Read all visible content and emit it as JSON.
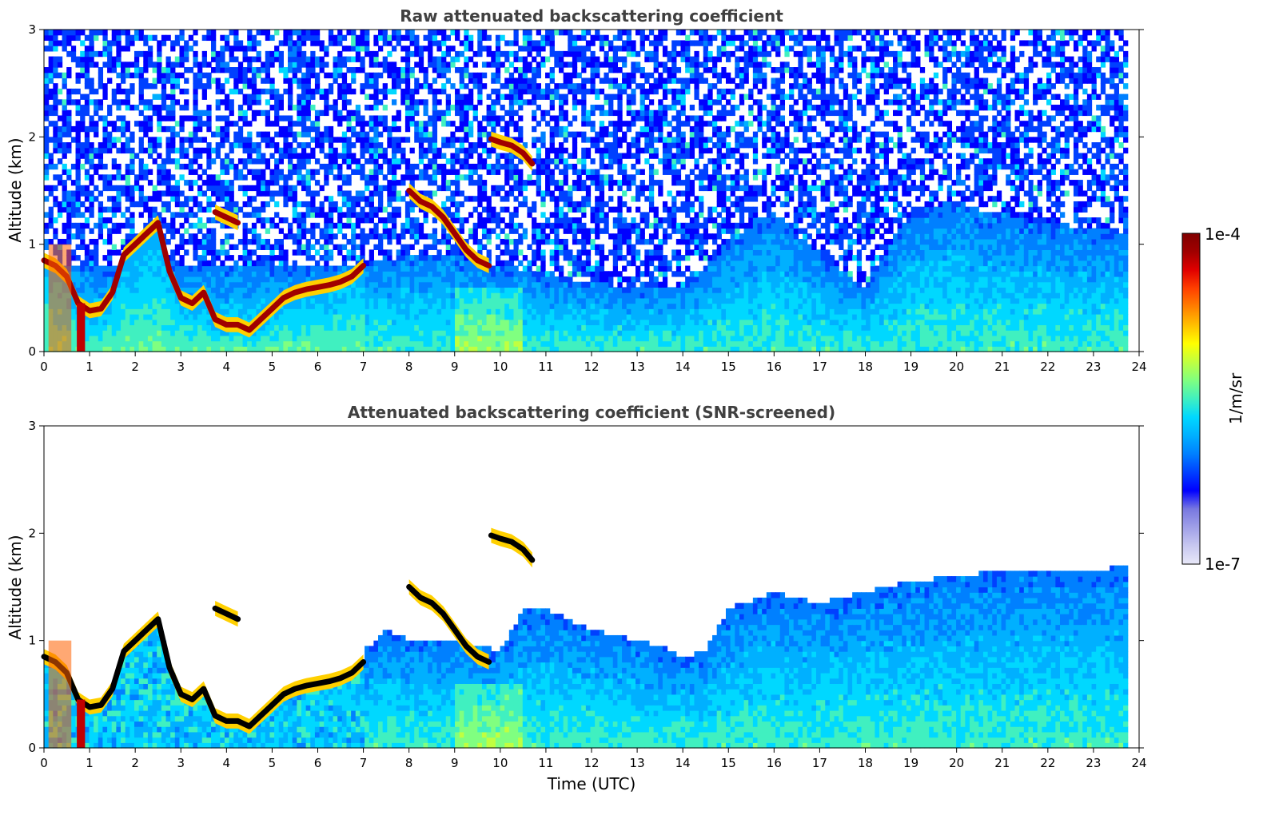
{
  "chart_data": [
    {
      "type": "heatmap",
      "title": "Raw attenuated backscattering coefficient",
      "xlabel": "",
      "ylabel": "Altitude (km)",
      "xlim": [
        0,
        24
      ],
      "ylim": [
        0,
        3
      ],
      "xticks": [
        "0",
        "1",
        "2",
        "3",
        "4",
        "5",
        "6",
        "7",
        "8",
        "9",
        "10",
        "11",
        "12",
        "13",
        "14",
        "15",
        "16",
        "17",
        "18",
        "19",
        "20",
        "21",
        "22",
        "23",
        "24"
      ],
      "yticks": [
        "0",
        "1",
        "2",
        "3"
      ],
      "data_end_time": 23.75,
      "cloud_layers": [
        {
          "t": [
            0.0,
            0.25,
            0.5,
            0.75,
            1.0,
            1.25,
            1.5,
            1.75,
            2.0,
            2.25,
            2.5,
            2.75,
            3.0,
            3.25,
            3.5,
            3.75,
            4.0,
            4.25,
            4.5,
            4.75,
            5.0,
            5.25,
            5.5,
            5.75,
            6.0,
            6.25,
            6.5,
            6.75,
            7.0
          ],
          "alt": [
            0.85,
            0.8,
            0.7,
            0.45,
            0.38,
            0.4,
            0.55,
            0.9,
            1.0,
            1.1,
            1.2,
            0.75,
            0.5,
            0.45,
            0.55,
            0.3,
            0.25,
            0.25,
            0.2,
            0.3,
            0.4,
            0.5,
            0.55,
            0.58,
            0.6,
            0.62,
            0.65,
            0.7,
            0.8
          ]
        },
        {
          "t": [
            3.75,
            4.0,
            4.25
          ],
          "alt": [
            1.3,
            1.25,
            1.2
          ]
        },
        {
          "t": [
            8.0,
            8.25,
            8.5,
            8.75,
            9.0,
            9.25,
            9.5,
            9.75
          ],
          "alt": [
            1.5,
            1.4,
            1.35,
            1.25,
            1.1,
            0.95,
            0.85,
            0.8
          ]
        },
        {
          "t": [
            9.8,
            10.0,
            10.25,
            10.5,
            10.7
          ],
          "alt": [
            1.98,
            1.95,
            1.92,
            1.85,
            1.75
          ]
        }
      ],
      "aerosol_top": {
        "t": [
          7,
          8,
          9,
          10,
          11,
          12,
          13,
          14,
          15,
          16,
          17,
          18,
          19,
          20,
          21,
          22,
          23,
          23.75
        ],
        "alt": [
          0.8,
          0.9,
          0.9,
          0.8,
          0.7,
          0.65,
          0.6,
          0.6,
          1.0,
          1.3,
          0.9,
          0.6,
          1.3,
          1.4,
          1.25,
          1.2,
          1.15,
          1.1
        ]
      }
    },
    {
      "type": "heatmap",
      "title": "Attenuated backscattering coefficient (SNR-screened)",
      "xlabel": "Time (UTC)",
      "ylabel": "Altitude (km)",
      "xlim": [
        0,
        24
      ],
      "ylim": [
        0,
        3
      ],
      "xticks": [
        "0",
        "1",
        "2",
        "3",
        "4",
        "5",
        "6",
        "7",
        "8",
        "9",
        "10",
        "11",
        "12",
        "13",
        "14",
        "15",
        "16",
        "17",
        "18",
        "19",
        "20",
        "21",
        "22",
        "23",
        "24"
      ],
      "yticks": [
        "0",
        "1",
        "2",
        "3"
      ],
      "data_end_time": 23.75,
      "cloud_layers": [
        {
          "t": [
            0.0,
            0.25,
            0.5,
            0.75,
            1.0,
            1.25,
            1.5,
            1.75,
            2.0,
            2.25,
            2.5,
            2.75,
            3.0,
            3.25,
            3.5,
            3.75,
            4.0,
            4.25,
            4.5,
            4.75,
            5.0,
            5.25,
            5.5,
            5.75,
            6.0,
            6.25,
            6.5,
            6.75,
            7.0
          ],
          "alt": [
            0.85,
            0.8,
            0.7,
            0.45,
            0.38,
            0.4,
            0.55,
            0.9,
            1.0,
            1.1,
            1.2,
            0.75,
            0.5,
            0.45,
            0.55,
            0.3,
            0.25,
            0.25,
            0.2,
            0.3,
            0.4,
            0.5,
            0.55,
            0.58,
            0.6,
            0.62,
            0.65,
            0.7,
            0.8
          ]
        },
        {
          "t": [
            3.75,
            4.0,
            4.25
          ],
          "alt": [
            1.3,
            1.25,
            1.2
          ]
        },
        {
          "t": [
            8.0,
            8.25,
            8.5,
            8.75,
            9.0,
            9.25,
            9.5,
            9.75
          ],
          "alt": [
            1.5,
            1.4,
            1.35,
            1.25,
            1.1,
            0.95,
            0.85,
            0.8
          ]
        },
        {
          "t": [
            9.8,
            10.0,
            10.25,
            10.5,
            10.7
          ],
          "alt": [
            1.98,
            1.95,
            1.92,
            1.85,
            1.75
          ]
        }
      ],
      "screened_top": {
        "t": [
          7,
          7.5,
          8,
          9,
          10,
          10.5,
          11,
          12,
          13,
          13.5,
          14,
          14.5,
          15,
          16,
          17,
          18,
          18.5,
          19,
          20,
          21,
          22,
          23,
          23.75
        ],
        "alt": [
          0.9,
          1.1,
          1.0,
          1.0,
          0.9,
          1.3,
          1.3,
          1.1,
          1.0,
          0.95,
          0.85,
          0.9,
          1.3,
          1.45,
          1.35,
          1.45,
          1.5,
          1.55,
          1.6,
          1.65,
          1.65,
          1.65,
          1.7
        ]
      }
    }
  ],
  "colorbar": {
    "label": "1/m/sr",
    "max_label": "1e-4",
    "min_label": "1e-7",
    "colors": [
      "#e8e8f8",
      "#c8c8f0",
      "#a0a0e8",
      "#7878e0",
      "#0000ff",
      "#0040ff",
      "#0080ff",
      "#00b0ff",
      "#00d8ff",
      "#40f0c0",
      "#80ff80",
      "#c0ff40",
      "#ffff00",
      "#ffc000",
      "#ff8000",
      "#ff4000",
      "#e00000",
      "#a00000",
      "#800000"
    ]
  }
}
